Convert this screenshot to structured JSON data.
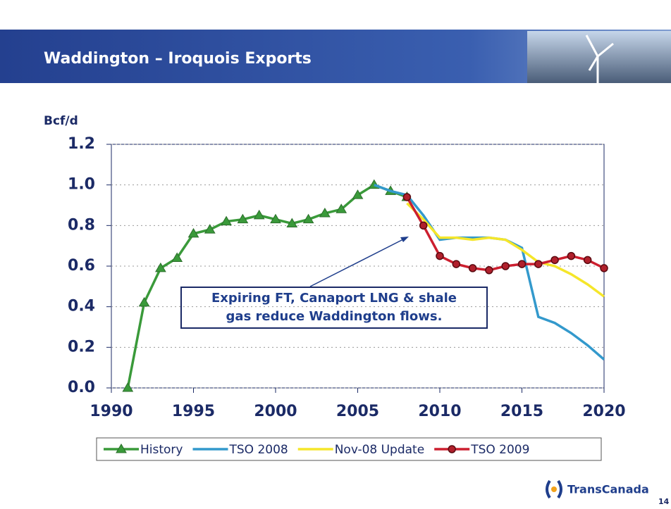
{
  "chart_data": {
    "type": "line",
    "title": "Waddington – Iroquois Exports",
    "y_label": "Bcf/d",
    "annotation": [
      "Expiring FT, Canaport LNG & shale",
      "gas reduce Waddington flows."
    ],
    "footer": {
      "logo": "TransCanada",
      "page": "14"
    },
    "x": [
      1991,
      1992,
      1993,
      1994,
      1995,
      1996,
      1997,
      1998,
      1999,
      2000,
      2001,
      2002,
      2003,
      2004,
      2005,
      2006,
      2007,
      2008,
      2009,
      2010,
      2011,
      2012,
      2013,
      2014,
      2015,
      2016,
      2017,
      2018,
      2019,
      2020
    ],
    "series": [
      {
        "name": "History",
        "color": "#3a9a3a",
        "marker": "triangle",
        "values": [
          0.0,
          0.42,
          0.59,
          0.64,
          0.76,
          0.78,
          0.82,
          0.83,
          0.85,
          0.83,
          0.81,
          0.83,
          0.86,
          0.88,
          0.95,
          1.0,
          0.97,
          0.94,
          null,
          null,
          null,
          null,
          null,
          null,
          null,
          null,
          null,
          null,
          null,
          null
        ]
      },
      {
        "name": "TSO 2008",
        "color": "#3399cc",
        "values": [
          null,
          null,
          null,
          null,
          null,
          null,
          null,
          null,
          null,
          null,
          null,
          null,
          null,
          null,
          null,
          1.0,
          0.97,
          0.95,
          0.85,
          0.73,
          0.74,
          0.74,
          0.74,
          0.73,
          0.69,
          0.35,
          0.32,
          0.27,
          0.21,
          0.14
        ]
      },
      {
        "name": "Nov-08 Update",
        "color": "#f5e62a",
        "values": [
          null,
          null,
          null,
          null,
          null,
          null,
          null,
          null,
          null,
          null,
          null,
          null,
          null,
          null,
          null,
          null,
          null,
          0.91,
          0.83,
          0.74,
          0.74,
          0.73,
          0.74,
          0.73,
          0.68,
          0.62,
          0.6,
          0.56,
          0.51,
          0.45
        ]
      },
      {
        "name": "TSO 2009",
        "color": "#cc1f2f",
        "marker": "circle",
        "values": [
          null,
          null,
          null,
          null,
          null,
          null,
          null,
          null,
          null,
          null,
          null,
          null,
          null,
          null,
          null,
          null,
          null,
          0.94,
          0.8,
          0.65,
          0.61,
          0.59,
          0.58,
          0.6,
          0.61,
          0.61,
          0.63,
          0.65,
          0.63,
          0.59
        ]
      }
    ],
    "xlim": [
      1990,
      2020
    ],
    "xticks": [
      1990,
      1995,
      2000,
      2005,
      2010,
      2015,
      2020
    ],
    "ylim": [
      0,
      1.2
    ],
    "yticks": [
      {
        "value": 0,
        "label": "0.0"
      },
      0.2,
      0.4,
      0.6,
      0.8,
      {
        "value": 1,
        "label": "1.0"
      },
      1.2
    ],
    "grid": true
  }
}
